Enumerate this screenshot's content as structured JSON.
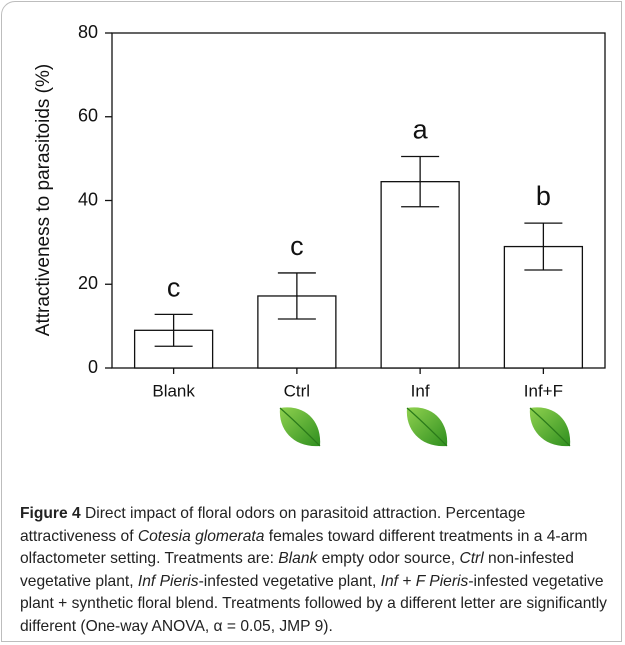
{
  "chart_data": {
    "type": "bar",
    "ylabel": "Attractiveness to parasitoids (%)",
    "categories": [
      "Blank",
      "Ctrl",
      "Inf",
      "Inf+F"
    ],
    "values": [
      9,
      17.2,
      44.5,
      29
    ],
    "errors": [
      3.8,
      5.5,
      6,
      5.6
    ],
    "letters": [
      "c",
      "c",
      "a",
      "b"
    ],
    "color": "#ffffff",
    "ylim": [
      0,
      80
    ],
    "yticks": [
      0,
      20,
      40,
      60,
      80
    ]
  },
  "caption": {
    "segments": [
      "Figure 4",
      " Direct impact of floral odors on parasitoid attraction. Percentage attractiveness of ",
      "Cotesia glomerata",
      " females toward different treatments in a 4-arm olfactometer setting. Treatments are: ",
      "Blank",
      " empty odor source, ",
      "Ctrl",
      " non-infested vegetative plant, ",
      "Inf Pieris",
      "-infested vegetative plant, ",
      "Inf + F Pieris",
      "-infested vegetative plant + synthetic floral blend. Treatments followed by a different letter are significantly different (One-way ANOVA, α = 0.05, JMP 9)."
    ]
  }
}
